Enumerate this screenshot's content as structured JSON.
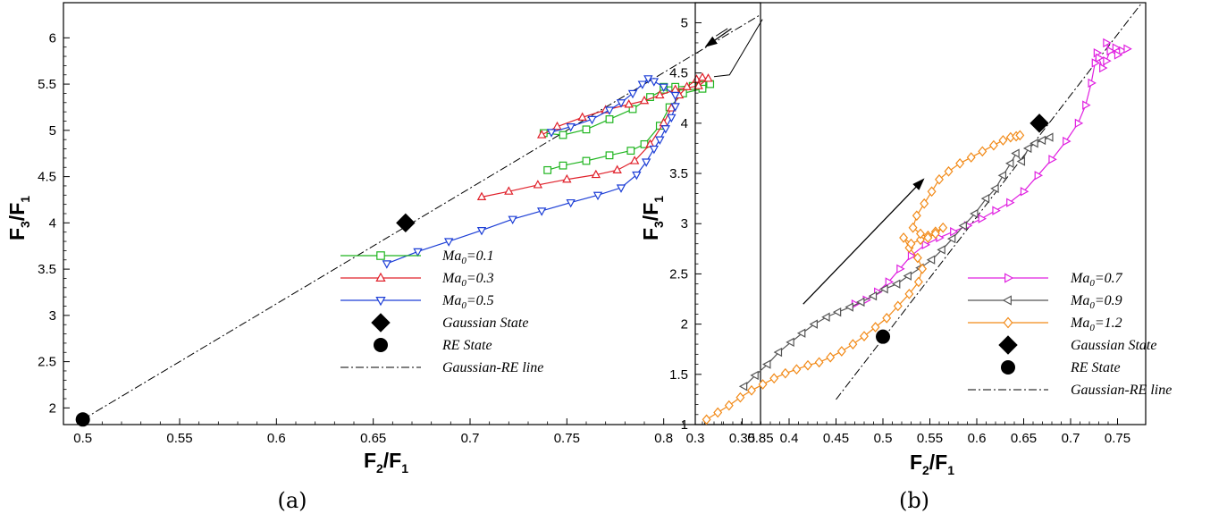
{
  "chart_data": [
    {
      "type": "line",
      "xlabel": {
        "base": "F",
        "sub": "2",
        "slash": "/F",
        "sub2": "1"
      },
      "ylabel": {
        "base": "F",
        "sub": "3",
        "slash": "/F",
        "sub2": "1"
      },
      "xlim": [
        0.49,
        0.85
      ],
      "ylim": [
        1.82,
        6.38
      ],
      "xticks": [
        0.5,
        0.55,
        0.6,
        0.65,
        0.7,
        0.75,
        0.8,
        0.85
      ],
      "xtick_labels": [
        "0.5",
        "0.55",
        "0.6",
        "0.65",
        "0.7",
        "0.75",
        "0.8",
        "0.85"
      ],
      "yticks": [
        2,
        2.5,
        3,
        3.5,
        4,
        4.5,
        5,
        5.5,
        6
      ],
      "ytick_labels": [
        "2",
        "2.5",
        "3",
        "3.5",
        "4",
        "4.5",
        "5",
        "5.5",
        "6"
      ],
      "caption": "(a)",
      "legend_position": "bottom-right",
      "series": [
        {
          "name": "Ma0=0.1",
          "legend_base": "Ma",
          "legend_sub": "0",
          "legend_rest": "=0.1",
          "color": "#1fb51f",
          "marker": "square",
          "x": [
            0.738,
            0.748,
            0.76,
            0.772,
            0.784,
            0.793,
            0.8,
            0.8,
            0.806,
            0.815,
            0.82,
            0.824,
            0.82,
            0.81,
            0.803,
            0.798,
            0.79,
            0.783,
            0.772,
            0.76,
            0.748,
            0.74
          ],
          "y": [
            4.97,
            4.95,
            5.01,
            5.12,
            5.23,
            5.36,
            5.44,
            5.47,
            5.47,
            5.48,
            5.49,
            5.5,
            5.45,
            5.4,
            5.25,
            5.05,
            4.85,
            4.78,
            4.73,
            4.67,
            4.62,
            4.57
          ]
        },
        {
          "name": "Ma0=0.3",
          "legend_base": "Ma",
          "legend_sub": "0",
          "legend_rest": "=0.3",
          "color": "#e0202a",
          "marker": "triangle-up",
          "x": [
            0.706,
            0.72,
            0.735,
            0.75,
            0.765,
            0.776,
            0.785,
            0.793,
            0.8,
            0.804,
            0.808,
            0.812,
            0.817,
            0.82,
            0.823,
            0.818,
            0.806,
            0.798,
            0.79,
            0.782,
            0.77,
            0.758,
            0.745,
            0.737
          ],
          "y": [
            4.28,
            4.34,
            4.41,
            4.47,
            4.52,
            4.57,
            4.67,
            4.85,
            5.08,
            5.24,
            5.38,
            5.47,
            5.55,
            5.57,
            5.56,
            5.48,
            5.44,
            5.38,
            5.32,
            5.28,
            5.22,
            5.14,
            5.04,
            4.95
          ]
        },
        {
          "name": "Ma0=0.5",
          "legend_base": "Ma",
          "legend_sub": "0",
          "legend_rest": "=0.5",
          "color": "#1c3ed6",
          "marker": "triangle-down",
          "x": [
            0.657,
            0.673,
            0.689,
            0.706,
            0.722,
            0.737,
            0.752,
            0.766,
            0.778,
            0.786,
            0.791,
            0.795,
            0.798,
            0.801,
            0.804,
            0.806,
            0.806,
            0.8,
            0.795,
            0.792,
            0.789,
            0.784,
            0.778,
            0.772,
            0.763,
            0.752,
            0.742
          ],
          "y": [
            3.56,
            3.69,
            3.8,
            3.92,
            4.04,
            4.13,
            4.22,
            4.3,
            4.38,
            4.52,
            4.66,
            4.8,
            4.9,
            5.02,
            5.14,
            5.26,
            5.38,
            5.47,
            5.53,
            5.56,
            5.5,
            5.4,
            5.3,
            5.22,
            5.12,
            5.04,
            4.98
          ]
        }
      ],
      "gaussian_state": {
        "label": "Gaussian State",
        "x": 0.6667,
        "y": 4.0
      },
      "re_state": {
        "label": "RE State",
        "x": 0.5,
        "y": 1.875
      },
      "gaussian_re_line": {
        "label": "Gaussian-RE line",
        "x": [
          0.5,
          0.85
        ],
        "y": [
          1.875,
          6.25
        ]
      },
      "arrow": {
        "x": [
          0.835,
          0.822
        ],
        "y": [
          6.1,
          5.91
        ]
      }
    },
    {
      "type": "line",
      "xlabel": {
        "base": "F",
        "sub": "2",
        "slash": "/F",
        "sub2": "1"
      },
      "ylabel": {
        "base": "F",
        "sub": "3",
        "slash": "/F",
        "sub2": "1"
      },
      "xlim": [
        0.3,
        0.78
      ],
      "ylim": [
        1.0,
        5.2
      ],
      "xticks": [
        0.3,
        0.35,
        0.4,
        0.45,
        0.5,
        0.55,
        0.6,
        0.65,
        0.7,
        0.75
      ],
      "xtick_labels": [
        "0.3",
        "0.35",
        "0.4",
        "0.45",
        "0.5",
        "0.55",
        "0.6",
        "0.65",
        "0.7",
        "0.75"
      ],
      "yticks": [
        1,
        1.5,
        2,
        2.5,
        3,
        3.5,
        4,
        4.5,
        5
      ],
      "ytick_labels": [
        "1",
        "1.5",
        "2",
        "2.5",
        "3",
        "3.5",
        "4",
        "4.5",
        "5"
      ],
      "caption": "(b)",
      "legend_position": "bottom-right",
      "series": [
        {
          "name": "Ma0=0.7",
          "legend_base": "Ma",
          "legend_sub": "0",
          "legend_rest": "=0.7",
          "color": "#e020e0",
          "marker": "triangle-right",
          "x": [
            0.47,
            0.482,
            0.494,
            0.506,
            0.518,
            0.53,
            0.545,
            0.56,
            0.575,
            0.59,
            0.605,
            0.62,
            0.635,
            0.65,
            0.665,
            0.68,
            0.695,
            0.708,
            0.716,
            0.722,
            0.726,
            0.728,
            0.73,
            0.734,
            0.738,
            0.742,
            0.748,
            0.755,
            0.76,
            0.75,
            0.742,
            0.738
          ],
          "y": [
            2.2,
            2.24,
            2.32,
            2.42,
            2.55,
            2.68,
            2.79,
            2.86,
            2.92,
            2.98,
            3.05,
            3.13,
            3.21,
            3.32,
            3.48,
            3.64,
            3.82,
            4.0,
            4.18,
            4.4,
            4.6,
            4.7,
            4.65,
            4.55,
            4.62,
            4.72,
            4.75,
            4.72,
            4.74,
            4.68,
            4.72,
            4.8
          ]
        },
        {
          "name": "Ma0=0.9",
          "legend_base": "Ma",
          "legend_sub": "0",
          "legend_rest": "=0.9",
          "color": "#555555",
          "marker": "triangle-left",
          "x": [
            0.352,
            0.364,
            0.377,
            0.389,
            0.402,
            0.414,
            0.427,
            0.44,
            0.452,
            0.465,
            0.477,
            0.49,
            0.502,
            0.515,
            0.527,
            0.54,
            0.552,
            0.563,
            0.574,
            0.586,
            0.598,
            0.61,
            0.62,
            0.628,
            0.636,
            0.642,
            0.648,
            0.655,
            0.662,
            0.67,
            0.678
          ],
          "y": [
            1.38,
            1.49,
            1.6,
            1.72,
            1.82,
            1.91,
            2.0,
            2.07,
            2.12,
            2.17,
            2.22,
            2.28,
            2.35,
            2.4,
            2.48,
            2.56,
            2.64,
            2.74,
            2.85,
            2.98,
            3.1,
            3.25,
            3.35,
            3.48,
            3.6,
            3.7,
            3.62,
            3.75,
            3.8,
            3.83,
            3.86
          ]
        },
        {
          "name": "Ma0=1.2",
          "legend_base": "Ma",
          "legend_sub": "0",
          "legend_rest": "=1.2",
          "color": "#f28a18",
          "marker": "diamond",
          "x": [
            0.312,
            0.324,
            0.336,
            0.348,
            0.36,
            0.372,
            0.384,
            0.396,
            0.408,
            0.42,
            0.432,
            0.444,
            0.456,
            0.468,
            0.48,
            0.492,
            0.504,
            0.516,
            0.528,
            0.538,
            0.542,
            0.537,
            0.528,
            0.522,
            0.53,
            0.54,
            0.548,
            0.556,
            0.564,
            0.556,
            0.548,
            0.54,
            0.532,
            0.536,
            0.544,
            0.552,
            0.56,
            0.57,
            0.582,
            0.594,
            0.606,
            0.618,
            0.628,
            0.636,
            0.642,
            0.646
          ],
          "y": [
            1.05,
            1.12,
            1.19,
            1.27,
            1.34,
            1.4,
            1.46,
            1.51,
            1.55,
            1.59,
            1.62,
            1.67,
            1.73,
            1.8,
            1.88,
            1.97,
            2.06,
            2.18,
            2.3,
            2.42,
            2.55,
            2.66,
            2.76,
            2.86,
            2.8,
            2.84,
            2.88,
            2.92,
            2.96,
            2.9,
            2.86,
            2.9,
            2.96,
            3.08,
            3.2,
            3.32,
            3.44,
            3.52,
            3.6,
            3.66,
            3.72,
            3.78,
            3.83,
            3.86,
            3.87,
            3.88
          ]
        }
      ],
      "gaussian_state": {
        "label": "Gaussian State",
        "x": 0.6667,
        "y": 4.0
      },
      "re_state": {
        "label": "RE State",
        "x": 0.5,
        "y": 1.875
      },
      "gaussian_re_line": {
        "label": "Gaussian-RE line",
        "x": [
          0.45,
          0.775
        ],
        "y": [
          1.25,
          5.1875
        ]
      },
      "arrow": {
        "x": [
          0.415,
          0.543
        ],
        "y": [
          2.2,
          3.44
        ]
      }
    }
  ]
}
